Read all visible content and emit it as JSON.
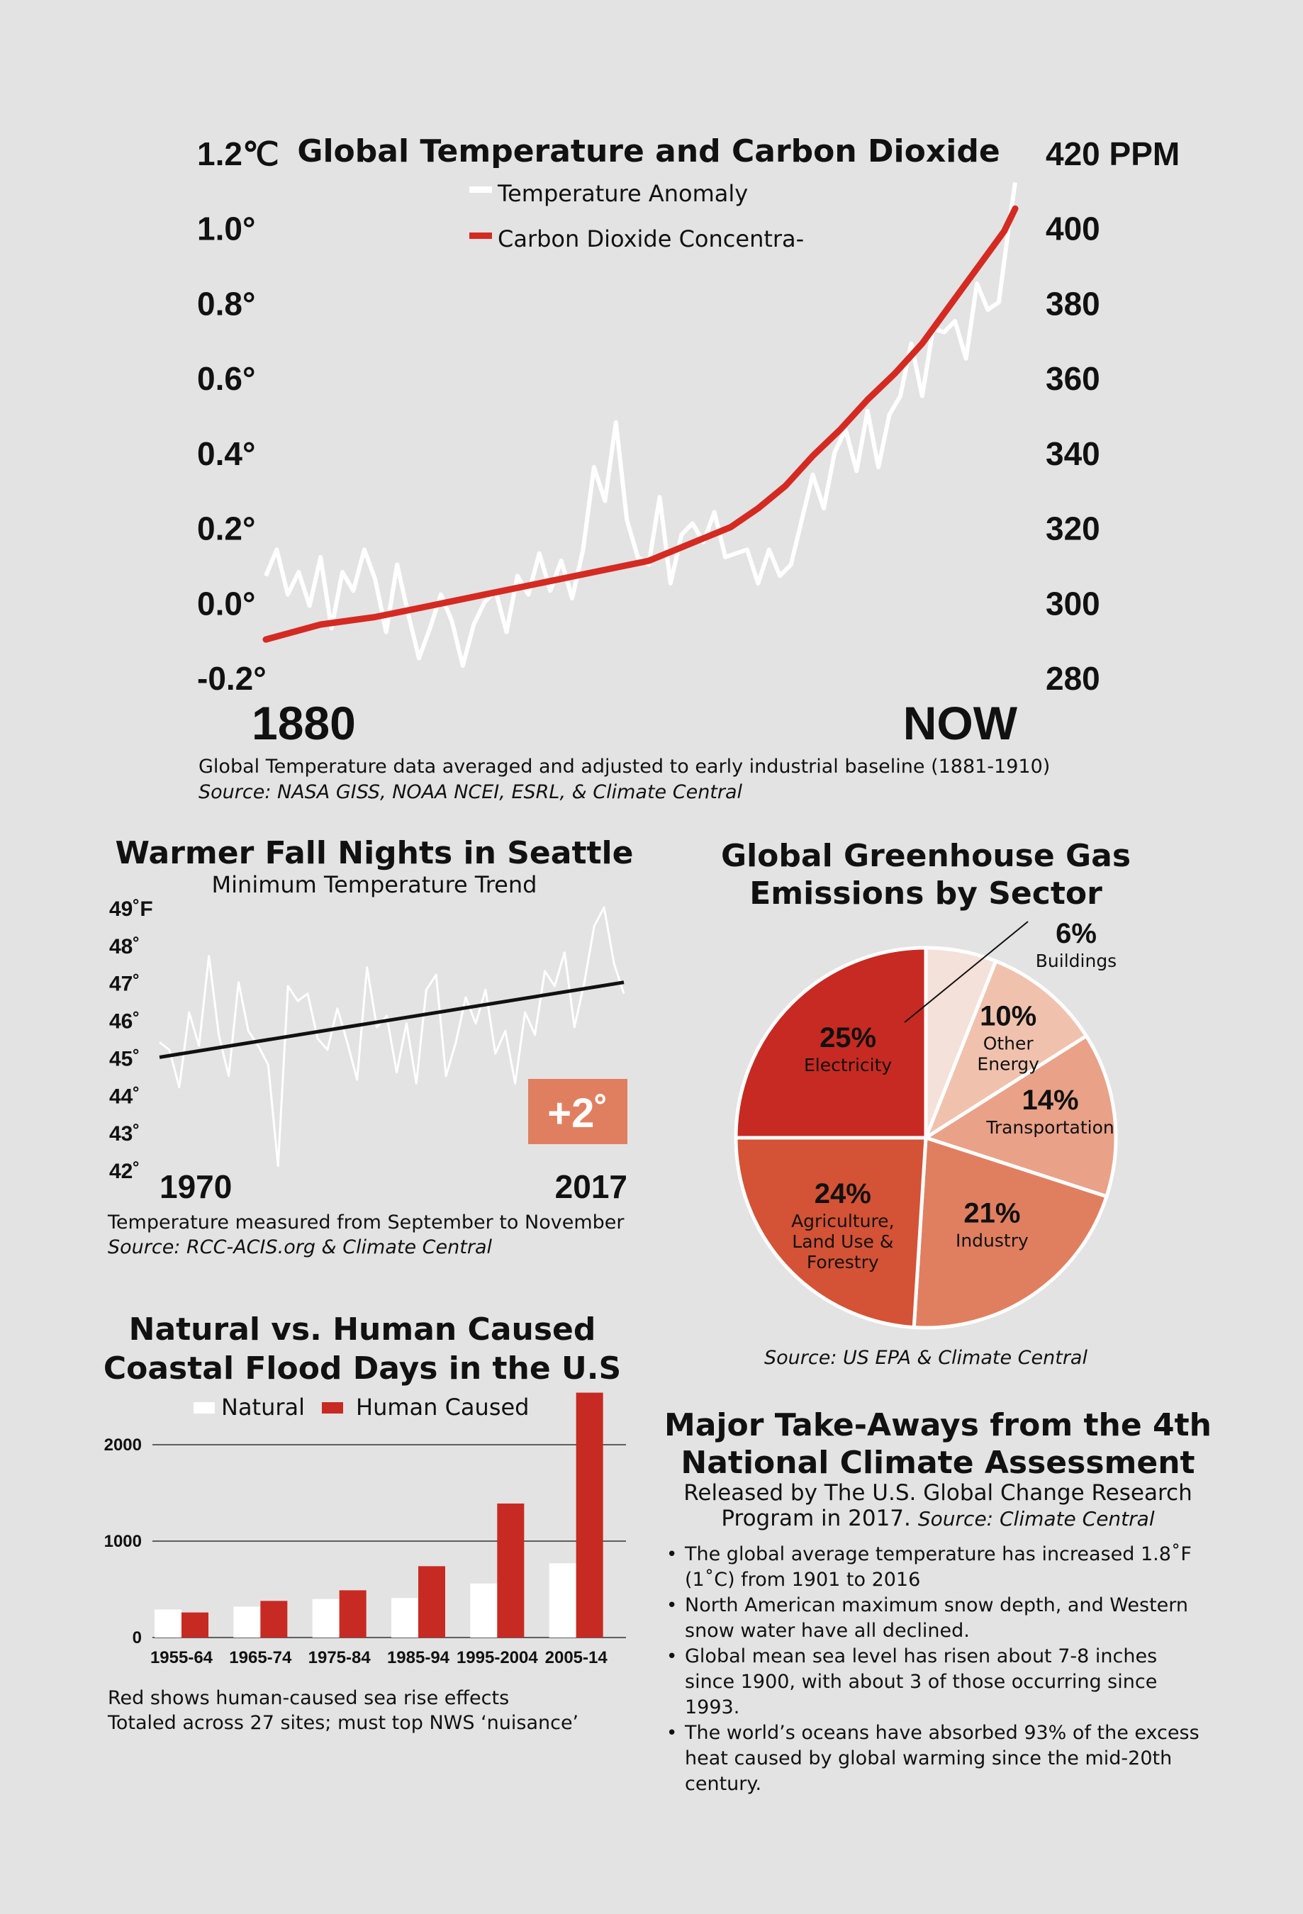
{
  "colors": {
    "background": "#e3e3e3",
    "co2_red": "#d42a22",
    "temp_white": "#ffffff",
    "badge": "#e07f60"
  },
  "chart_data": [
    {
      "type": "line",
      "title": "Global Temperature and Carbon Dioxide",
      "legend": [
        "Temperature Anomaly",
        "Carbon Dioxide Concentra-"
      ],
      "x_labels": [
        "1880",
        "NOW"
      ],
      "y_left_ticks": [
        "1.2℃",
        "1.0°",
        "0.8°",
        "0.6°",
        "0.4°",
        "0.2°",
        "0.0°",
        "-0.2°"
      ],
      "y_right_ticks": [
        "420 PPM",
        "400",
        "380",
        "360",
        "340",
        "320",
        "300",
        "280"
      ],
      "xlim": [
        1880,
        2017
      ],
      "ylim_left": [
        -0.2,
        1.2
      ],
      "ylim_right": [
        280,
        420
      ],
      "series": [
        {
          "name": "Temperature Anomaly",
          "x": [
            1880,
            1882,
            1884,
            1886,
            1888,
            1890,
            1892,
            1894,
            1896,
            1898,
            1900,
            1902,
            1904,
            1906,
            1908,
            1910,
            1912,
            1914,
            1916,
            1918,
            1920,
            1922,
            1924,
            1926,
            1928,
            1930,
            1932,
            1934,
            1936,
            1938,
            1940,
            1942,
            1944,
            1946,
            1948,
            1950,
            1952,
            1954,
            1956,
            1958,
            1960,
            1962,
            1964,
            1966,
            1968,
            1970,
            1972,
            1974,
            1976,
            1978,
            1980,
            1982,
            1984,
            1986,
            1988,
            1990,
            1992,
            1994,
            1996,
            1998,
            2000,
            2002,
            2004,
            2006,
            2008,
            2010,
            2012,
            2014,
            2016,
            2017
          ],
          "values": [
            0.07,
            0.14,
            0.02,
            0.08,
            -0.01,
            0.12,
            -0.07,
            0.08,
            0.03,
            0.14,
            0.06,
            -0.08,
            0.1,
            -0.03,
            -0.15,
            -0.07,
            0.02,
            -0.05,
            -0.17,
            -0.06,
            0.0,
            0.03,
            -0.08,
            0.07,
            0.02,
            0.13,
            0.03,
            0.11,
            0.01,
            0.14,
            0.36,
            0.27,
            0.48,
            0.22,
            0.12,
            0.1,
            0.28,
            0.05,
            0.18,
            0.21,
            0.16,
            0.24,
            0.12,
            0.13,
            0.14,
            0.05,
            0.14,
            0.07,
            0.1,
            0.22,
            0.34,
            0.25,
            0.4,
            0.46,
            0.35,
            0.51,
            0.36,
            0.5,
            0.55,
            0.69,
            0.55,
            0.73,
            0.72,
            0.75,
            0.65,
            0.85,
            0.78,
            0.8,
            1.02,
            1.12
          ]
        },
        {
          "name": "Carbon Dioxide Concentra-",
          "x": [
            1880,
            1890,
            1900,
            1910,
            1920,
            1930,
            1940,
            1950,
            1955,
            1960,
            1965,
            1970,
            1975,
            1980,
            1985,
            1990,
            1995,
            2000,
            2005,
            2010,
            2015,
            2017
          ],
          "values": [
            290,
            294,
            296,
            299,
            302,
            305,
            308,
            311,
            314,
            317,
            320,
            325,
            331,
            339,
            346,
            354,
            361,
            369,
            379,
            389,
            399,
            405
          ]
        }
      ],
      "notes": [
        "Global Temperature data averaged and adjusted to early industrial baseline (1881-1910)",
        "Source: NASA GISS, NOAA NCEI, ESRL, & Climate Central"
      ]
    },
    {
      "type": "line",
      "title": "Warmer Fall Nights in Seattle",
      "subtitle": "Minimum Temperature Trend",
      "x_labels": [
        "1970",
        "2017"
      ],
      "y_ticks": [
        "49˚F",
        "48˚",
        "47˚",
        "46˚",
        "45˚",
        "44˚",
        "43˚",
        "42˚"
      ],
      "xlim": [
        1970,
        2017
      ],
      "ylim": [
        42,
        49
      ],
      "badge": "+2˚",
      "series": [
        {
          "name": "Minimum Temperature",
          "x": [
            1970,
            1971,
            1972,
            1973,
            1974,
            1975,
            1976,
            1977,
            1978,
            1979,
            1980,
            1981,
            1982,
            1983,
            1984,
            1985,
            1986,
            1987,
            1988,
            1989,
            1990,
            1991,
            1992,
            1993,
            1994,
            1995,
            1996,
            1997,
            1998,
            1999,
            2000,
            2001,
            2002,
            2003,
            2004,
            2005,
            2006,
            2007,
            2008,
            2009,
            2010,
            2011,
            2012,
            2013,
            2014,
            2015,
            2016,
            2017
          ],
          "values": [
            45.4,
            45.2,
            44.2,
            46.2,
            45.3,
            47.7,
            45.6,
            44.5,
            47.0,
            45.7,
            45.3,
            44.8,
            42.1,
            46.9,
            46.5,
            46.7,
            45.5,
            45.2,
            46.3,
            45.4,
            44.4,
            47.4,
            45.8,
            46.1,
            44.6,
            45.9,
            44.3,
            46.8,
            47.2,
            44.5,
            45.4,
            46.6,
            45.9,
            46.8,
            45.1,
            45.7,
            44.3,
            46.2,
            45.6,
            47.3,
            46.9,
            47.8,
            45.8,
            47.0,
            48.5,
            49.0,
            47.5,
            46.7
          ]
        },
        {
          "name": "Trend",
          "x": [
            1970,
            2017
          ],
          "values": [
            45.0,
            47.0
          ]
        }
      ],
      "notes": [
        "Temperature measured from September to November",
        "Source: RCC-ACIS.org & Climate Central"
      ]
    },
    {
      "type": "pie",
      "title": [
        "Global Greenhouse Gas",
        "Emissions by Sector"
      ],
      "slices": [
        {
          "label": "Buildings",
          "pct_text": "6%",
          "value": 6,
          "color": "#f4e1da"
        },
        {
          "label": "Other Energy",
          "label_lines": [
            "Other",
            "Energy"
          ],
          "pct_text": "10%",
          "value": 10,
          "color": "#f0c2ae"
        },
        {
          "label": "Transportation",
          "pct_text": "14%",
          "value": 14,
          "color": "#e9a188"
        },
        {
          "label": "Industry",
          "pct_text": "21%",
          "value": 21,
          "color": "#e07f60"
        },
        {
          "label": "Agriculture, Land Use & Forestry",
          "label_lines": [
            "Agriculture,",
            "Land Use &",
            "Forestry"
          ],
          "pct_text": "24%",
          "value": 24,
          "color": "#d45235"
        },
        {
          "label": "Electricity",
          "pct_text": "25%",
          "value": 25,
          "color": "#c72a22"
        }
      ],
      "notes": [
        "Source: US EPA & Climate Central"
      ]
    },
    {
      "type": "bar",
      "title": [
        "Natural vs. Human Caused",
        "Coastal Flood Days  in the U.S"
      ],
      "legend": [
        "Natural",
        "Human Caused"
      ],
      "categories": [
        "1955-64",
        "1965-74",
        "1975-84",
        "1985-94",
        "1995-2004",
        "2005-14"
      ],
      "y_ticks": [
        "2000",
        "1000",
        "0"
      ],
      "ylim": [
        0,
        2500
      ],
      "series": [
        {
          "name": "Natural",
          "values": [
            290,
            320,
            400,
            410,
            560,
            770
          ],
          "color": "#ffffff"
        },
        {
          "name": "Human Caused",
          "values": [
            260,
            380,
            490,
            740,
            1390,
            2540
          ],
          "color": "#c72a22"
        }
      ],
      "notes": [
        "Red shows human-caused sea rise effects",
        "Totaled across 27 sites; must top NWS ‘nuisance’"
      ]
    }
  ],
  "takeaways": {
    "title": [
      "Major Take-Aways from the 4th",
      "National Climate Assessment"
    ],
    "subtitle_line1": "Released by The U.S. Global Change Research",
    "subtitle_line2": "Program in 2017.",
    "subtitle_source": "Source: Climate Central",
    "bullets": [
      "The global average temperature has increased 1.8˚F (1˚C) from 1901 to 2016",
      "North American maximum snow depth, and Western snow water have all declined.",
      "Global mean sea level has risen about 7-8 inches since 1900, with about 3 of those occurring since 1993.",
      "The world’s oceans have absorbed 93% of the excess heat caused by global warming since the mid-20th century."
    ]
  }
}
